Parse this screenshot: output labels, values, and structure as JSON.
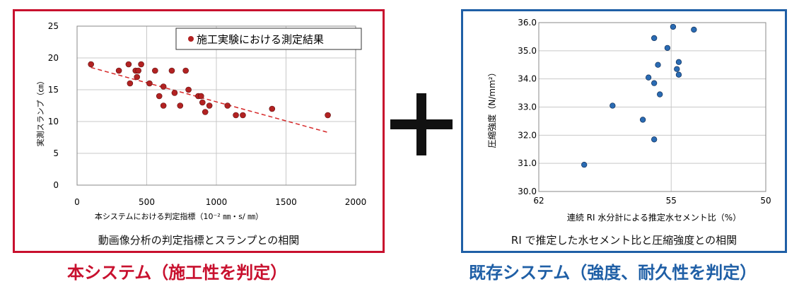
{
  "left": {
    "caption": "動画像分析の判定指標とスランプとの相関",
    "bottom_label": "本システム（施工性を判定）"
  },
  "right": {
    "caption": "RI で推定した水セメント比と圧縮強度との相関",
    "bottom_label": "既存システム（強度、耐久性を判定）"
  },
  "colors": {
    "left_border": "#c8102e",
    "right_border": "#1f5fa6",
    "left_marker": "#b22222",
    "right_marker": "#2a6bb3",
    "trend_line": "#d62728"
  },
  "chart_data": [
    {
      "type": "scatter",
      "title": "",
      "xlabel": "本システムにおける判定指標（10⁻² ㎜・s/ ㎜）",
      "ylabel": "実測スランプ（㎝）",
      "xlim": [
        0,
        2000
      ],
      "ylim": [
        0,
        25
      ],
      "xticks": [
        0,
        500,
        1000,
        1500,
        2000
      ],
      "yticks": [
        0,
        5,
        10,
        15,
        20,
        25
      ],
      "grid": true,
      "legend": "top-right",
      "series": [
        {
          "name": "施工実験における測定結果",
          "points": [
            [
              100,
              19
            ],
            [
              300,
              18
            ],
            [
              370,
              19
            ],
            [
              380,
              16
            ],
            [
              420,
              18
            ],
            [
              430,
              17
            ],
            [
              440,
              18
            ],
            [
              460,
              19
            ],
            [
              520,
              16
            ],
            [
              560,
              18
            ],
            [
              590,
              14
            ],
            [
              620,
              15.5
            ],
            [
              620,
              12.5
            ],
            [
              680,
              18
            ],
            [
              700,
              14.5
            ],
            [
              740,
              12.5
            ],
            [
              780,
              18
            ],
            [
              800,
              15
            ],
            [
              870,
              14
            ],
            [
              890,
              14
            ],
            [
              900,
              13
            ],
            [
              920,
              11.5
            ],
            [
              950,
              12.5
            ],
            [
              1080,
              12.5
            ],
            [
              1140,
              11
            ],
            [
              1190,
              11
            ],
            [
              1400,
              12
            ],
            [
              1800,
              11
            ]
          ]
        }
      ],
      "trendline": {
        "x": [
          100,
          1800
        ],
        "y": [
          18.5,
          8.3
        ]
      }
    },
    {
      "type": "scatter",
      "title": "",
      "xlabel": "連続 RI 水分計による推定水セメント比（%）",
      "ylabel": "圧縮強度（N/mm²）",
      "xlim": [
        62,
        50
      ],
      "ylim": [
        30.0,
        36.0
      ],
      "xticks": [
        62,
        55,
        50
      ],
      "yticks": [
        30.0,
        31.0,
        32.0,
        33.0,
        34.0,
        35.0,
        36.0
      ],
      "grid": true,
      "series": [
        {
          "points": [
            [
              54.9,
              35.85
            ],
            [
              53.8,
              35.75
            ],
            [
              55.9,
              35.45
            ],
            [
              55.2,
              35.1
            ],
            [
              55.7,
              34.5
            ],
            [
              54.6,
              34.6
            ],
            [
              54.7,
              34.35
            ],
            [
              54.6,
              34.15
            ],
            [
              56.2,
              34.05
            ],
            [
              55.9,
              33.85
            ],
            [
              55.6,
              33.45
            ],
            [
              58.1,
              33.05
            ],
            [
              56.5,
              32.55
            ],
            [
              55.9,
              31.85
            ],
            [
              59.6,
              30.95
            ]
          ]
        }
      ]
    }
  ]
}
